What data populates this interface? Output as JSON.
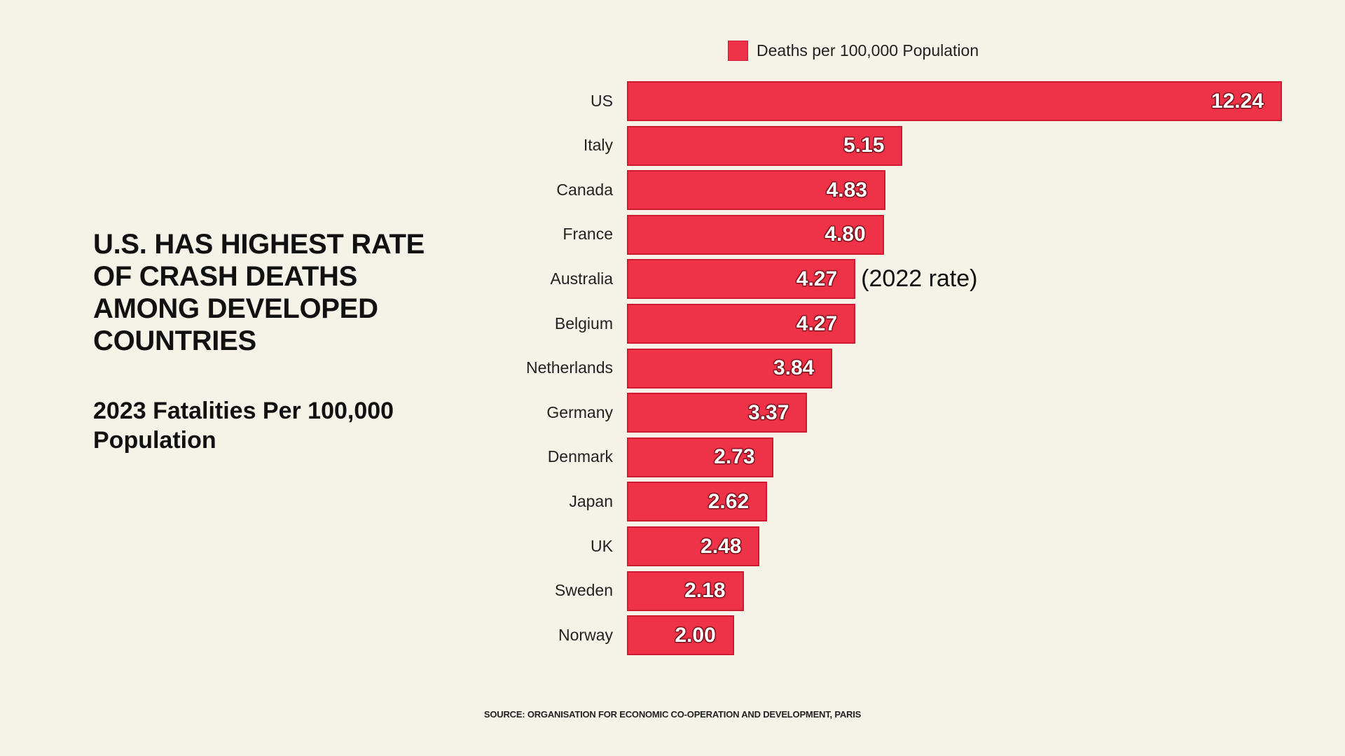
{
  "header": {
    "title_lines": [
      "U.S. HAS HIGHEST RATE",
      "OF CRASH DEATHS",
      "AMONG DEVELOPED",
      "COUNTRIES"
    ],
    "subtitle_lines": [
      "2023 Fatalities Per 100,000",
      "Population"
    ]
  },
  "legend": {
    "label": "Deaths per 100,000 Population",
    "color": "#ee3349"
  },
  "footer": {
    "source": "SOURCE: ORGANISATION FOR ECONOMIC CO-OPERATION AND DEVELOPMENT, PARIS"
  },
  "chart_data": {
    "type": "bar",
    "orientation": "horizontal",
    "title": "U.S. HAS HIGHEST RATE OF CRASH DEATHS AMONG DEVELOPED COUNTRIES",
    "subtitle": "2023 Fatalities Per 100,000 Population",
    "xlabel": "",
    "ylabel": "",
    "grid": false,
    "legend_position": "top",
    "xlim": [
      0,
      12.24
    ],
    "categories": [
      "US",
      "Italy",
      "Canada",
      "France",
      "Australia",
      "Belgium",
      "Netherlands",
      "Germany",
      "Denmark",
      "Japan",
      "UK",
      "Sweden",
      "Norway"
    ],
    "series": [
      {
        "name": "Deaths per 100,000 Population",
        "color": "#ee3349",
        "values": [
          12.24,
          5.15,
          4.83,
          4.8,
          4.27,
          4.27,
          3.84,
          3.37,
          2.73,
          2.62,
          2.48,
          2.18,
          2.0
        ],
        "value_labels": [
          "12.24",
          "5.15",
          "4.83",
          "4.80",
          "4.27",
          "4.27",
          "3.84",
          "3.37",
          "2.73",
          "2.62",
          "2.48",
          "2.18",
          "2.00"
        ]
      }
    ],
    "annotations": [
      {
        "category": "Australia",
        "text": "(2022 rate)"
      }
    ]
  }
}
